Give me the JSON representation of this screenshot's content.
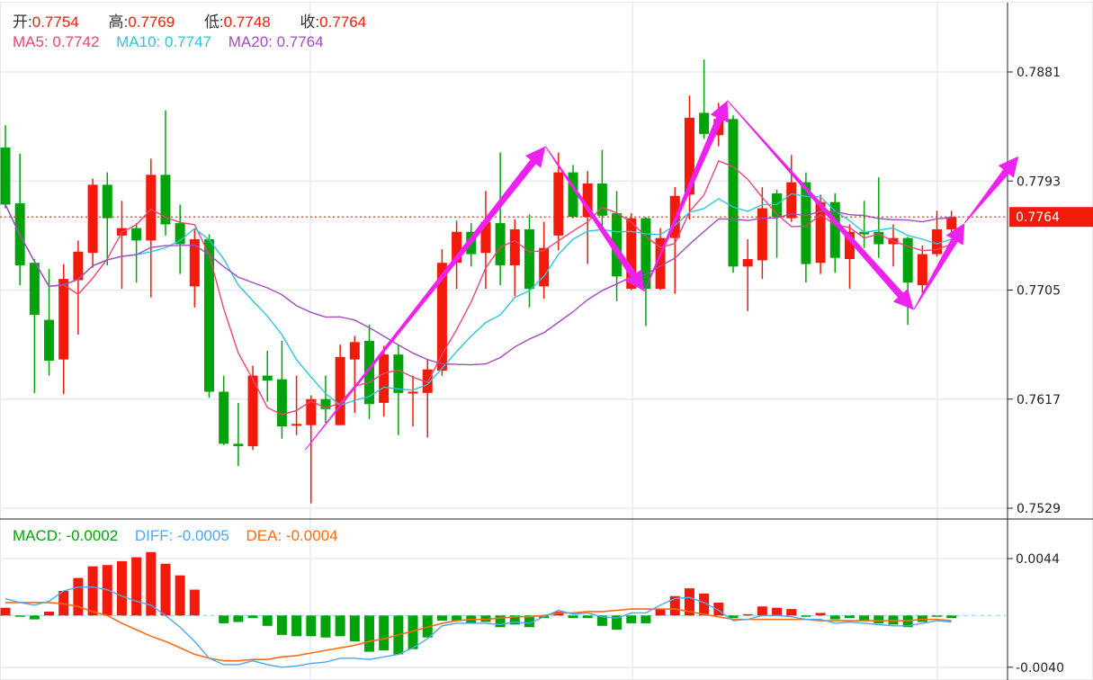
{
  "ohlc_legend": {
    "open_label": "开:",
    "open": "0.7754",
    "high_label": "高:",
    "high": "0.7769",
    "low_label": "低:",
    "low": "0.7748",
    "close_label": "收:",
    "close": "0.7764"
  },
  "ma_legend": {
    "ma5": "MA5: 0.7742",
    "ma10": "MA10: 0.7747",
    "ma20": "MA20: 0.7764"
  },
  "macd_legend": {
    "macd": "MACD: -0.0002",
    "diff": "DIFF: -0.0005",
    "dea": "DEA: -0.0004"
  },
  "colors": {
    "up": "#f21a0a",
    "down": "#00a40a",
    "ma5": "#e8457a",
    "ma10": "#2cc5dc",
    "ma20": "#a24cc0",
    "diff": "#4ea7f0",
    "dea": "#ff6a10",
    "arrow": "#ee22ee",
    "grid": "#e3ebf2"
  },
  "chart_data": [
    {
      "type": "candlestick",
      "title": "",
      "y_ticks": [
        "0.7881",
        "0.7793",
        "0.7705",
        "0.7617",
        "0.7529"
      ],
      "ylim": [
        0.7529,
        0.7881
      ],
      "last_price": "0.7764",
      "grid": true,
      "moving_averages": [
        5,
        10,
        20
      ],
      "candles_ohlc": [
        [
          0.782,
          0.7838,
          0.7771,
          0.7774
        ],
        [
          0.7775,
          0.7815,
          0.7709,
          0.7725
        ],
        [
          0.7727,
          0.773,
          0.7622,
          0.7685
        ],
        [
          0.7681,
          0.7722,
          0.7636,
          0.7648
        ],
        [
          0.7649,
          0.7726,
          0.7621,
          0.7714
        ],
        [
          0.7713,
          0.7745,
          0.7669,
          0.7736
        ],
        [
          0.7735,
          0.7795,
          0.7723,
          0.779
        ],
        [
          0.779,
          0.78,
          0.7725,
          0.7763
        ],
        [
          0.7749,
          0.7777,
          0.7706,
          0.7755
        ],
        [
          0.7755,
          0.7759,
          0.7711,
          0.7745
        ],
        [
          0.7745,
          0.7811,
          0.7699,
          0.7798
        ],
        [
          0.7798,
          0.785,
          0.7749,
          0.7758
        ],
        [
          0.7759,
          0.7774,
          0.7718,
          0.7742
        ],
        [
          0.7708,
          0.7755,
          0.7691,
          0.7746
        ],
        [
          0.7746,
          0.775,
          0.7618,
          0.7623
        ],
        [
          0.7623,
          0.7636,
          0.758,
          0.7581
        ],
        [
          0.7581,
          0.7614,
          0.7563,
          0.7579
        ],
        [
          0.7579,
          0.7644,
          0.7576,
          0.7636
        ],
        [
          0.7636,
          0.7656,
          0.7615,
          0.7632
        ],
        [
          0.7633,
          0.7664,
          0.7585,
          0.7595
        ],
        [
          0.7596,
          0.7636,
          0.7588,
          0.7597
        ],
        [
          0.7596,
          0.762,
          0.7533,
          0.7617
        ],
        [
          0.7617,
          0.7636,
          0.7598,
          0.7609
        ],
        [
          0.7596,
          0.7661,
          0.7596,
          0.7651
        ],
        [
          0.7649,
          0.7668,
          0.7606,
          0.7663
        ],
        [
          0.7664,
          0.7677,
          0.7601,
          0.7613
        ],
        [
          0.7614,
          0.766,
          0.7603,
          0.7653
        ],
        [
          0.7653,
          0.7661,
          0.7588,
          0.7622
        ],
        [
          0.7622,
          0.7636,
          0.7595,
          0.7623
        ],
        [
          0.7622,
          0.7649,
          0.7586,
          0.7641
        ],
        [
          0.764,
          0.7738,
          0.7636,
          0.7727
        ],
        [
          0.7727,
          0.7761,
          0.7706,
          0.7752
        ],
        [
          0.7752,
          0.7759,
          0.7724,
          0.7734
        ],
        [
          0.7735,
          0.7785,
          0.7706,
          0.776
        ],
        [
          0.7759,
          0.7816,
          0.7709,
          0.7725
        ],
        [
          0.7725,
          0.7762,
          0.77,
          0.7754
        ],
        [
          0.7754,
          0.7766,
          0.7691,
          0.7706
        ],
        [
          0.7708,
          0.776,
          0.7698,
          0.7739
        ],
        [
          0.7749,
          0.7816,
          0.7737,
          0.78
        ],
        [
          0.78,
          0.7806,
          0.7763,
          0.7764
        ],
        [
          0.7764,
          0.7801,
          0.7726,
          0.7791
        ],
        [
          0.7791,
          0.7818,
          0.7756,
          0.7765
        ],
        [
          0.7767,
          0.7785,
          0.7696,
          0.7716
        ],
        [
          0.7706,
          0.7767,
          0.7705,
          0.7763
        ],
        [
          0.7763,
          0.7764,
          0.7676,
          0.7706
        ],
        [
          0.7706,
          0.7755,
          0.7705,
          0.7747
        ],
        [
          0.7747,
          0.7788,
          0.7702,
          0.7781
        ],
        [
          0.7782,
          0.7862,
          0.7762,
          0.7844
        ],
        [
          0.7848,
          0.7891,
          0.7827,
          0.7831
        ],
        [
          0.783,
          0.7856,
          0.7821,
          0.7843
        ],
        [
          0.7843,
          0.7846,
          0.7719,
          0.7724
        ],
        [
          0.7724,
          0.7746,
          0.7688,
          0.773
        ],
        [
          0.7729,
          0.7788,
          0.7714,
          0.7771
        ],
        [
          0.7783,
          0.7786,
          0.7731,
          0.7764
        ],
        [
          0.7763,
          0.7814,
          0.776,
          0.7792
        ],
        [
          0.7792,
          0.78,
          0.7711,
          0.7726
        ],
        [
          0.7727,
          0.7782,
          0.7718,
          0.7776
        ],
        [
          0.7776,
          0.7783,
          0.7719,
          0.7731
        ],
        [
          0.773,
          0.7758,
          0.7706,
          0.7752
        ],
        [
          0.7752,
          0.7777,
          0.7739,
          0.775
        ],
        [
          0.7752,
          0.7796,
          0.7731,
          0.7742
        ],
        [
          0.7742,
          0.7758,
          0.7724,
          0.7747
        ],
        [
          0.7747,
          0.7748,
          0.7677,
          0.7711
        ],
        [
          0.7709,
          0.7741,
          0.7702,
          0.7734
        ],
        [
          0.7734,
          0.7769,
          0.7732,
          0.7754
        ],
        [
          0.7754,
          0.7769,
          0.7748,
          0.7764
        ]
      ],
      "annotation_arrows_index_price": [
        [
          [
            20.6,
            0.7576
          ],
          [
            37.1,
            0.7821
          ]
        ],
        [
          [
            37.1,
            0.7821
          ],
          [
            43.9,
            0.7704
          ]
        ],
        [
          [
            43.9,
            0.7704
          ],
          [
            49.6,
            0.7858
          ]
        ],
        [
          [
            49.6,
            0.7858
          ],
          [
            62.4,
            0.7689
          ]
        ],
        [
          [
            62.4,
            0.7689
          ],
          [
            65.9,
            0.7759
          ]
        ],
        [
          [
            65.9,
            0.7759
          ],
          [
            69.6,
            0.7813
          ]
        ]
      ]
    },
    {
      "type": "bar+line",
      "title": "",
      "y_ticks": [
        "0.0044",
        "-0.0040"
      ],
      "ylim": [
        -0.004,
        0.0044
      ],
      "macd_hist": [
        0.0006,
        -0.0001,
        -0.0003,
        0.0003,
        0.0019,
        0.0029,
        0.0038,
        0.0039,
        0.0042,
        0.0045,
        0.0049,
        0.004,
        0.0031,
        0.002,
        0,
        -0.0006,
        -0.0005,
        -0.0002,
        -0.0008,
        -0.0015,
        -0.0016,
        -0.0016,
        -0.0017,
        -0.0016,
        -0.002,
        -0.0028,
        -0.0027,
        -0.003,
        -0.0026,
        -0.0017,
        -0.0004,
        -0.0004,
        -0.0006,
        -0.0005,
        -0.0009,
        -0.0007,
        -0.0009,
        -0.0002,
        0.0003,
        -0.0002,
        -0.0002,
        -0.0008,
        -0.0011,
        -0.0006,
        -0.0006,
        0.0005,
        0.0015,
        0.0021,
        0.0017,
        0.001,
        -0.0002,
        0.0001,
        0.0007,
        0.0006,
        0.0005,
        -0.0001,
        0.0002,
        -0.0003,
        -0.0002,
        -0.0004,
        -0.0006,
        -0.0007,
        -0.0009,
        -0.0005,
        -0.0001,
        -0.0002
      ],
      "diff": [
        0.0013,
        0.001,
        0.0008,
        0.0011,
        0.0019,
        0.0022,
        0.0022,
        0.002,
        0.0015,
        0.0011,
        0.0008,
        0.0,
        -0.0009,
        -0.002,
        -0.0033,
        -0.0038,
        -0.0038,
        -0.0035,
        -0.0038,
        -0.004,
        -0.0039,
        -0.0037,
        -0.0036,
        -0.0033,
        -0.0033,
        -0.0034,
        -0.0032,
        -0.003,
        -0.0025,
        -0.0018,
        -0.0008,
        -0.0006,
        -0.0006,
        -0.0006,
        -0.0007,
        -0.0005,
        -0.0006,
        -0.0001,
        0.0004,
        0.0001,
        0.0002,
        -0.0001,
        -0.0002,
        0.0002,
        0.0002,
        0.0008,
        0.0013,
        0.0014,
        0.001,
        0.0004,
        -0.0004,
        -0.0003,
        0.0,
        0.0,
        -0.0001,
        -0.0003,
        -0.0003,
        -0.0006,
        -0.0005,
        -0.0006,
        -0.0007,
        -0.0008,
        -0.0008,
        -0.0006,
        -0.0004,
        -0.0005
      ],
      "dea": [
        0.001,
        0.001,
        0.001,
        0.001,
        0.0009,
        0.0007,
        0.0003,
        0.0,
        -0.0006,
        -0.0011,
        -0.0016,
        -0.002,
        -0.0025,
        -0.003,
        -0.0033,
        -0.0035,
        -0.0035,
        -0.0034,
        -0.0034,
        -0.0032,
        -0.0031,
        -0.0029,
        -0.0027,
        -0.0025,
        -0.0023,
        -0.002,
        -0.0018,
        -0.0015,
        -0.0012,
        -0.0009,
        -0.0006,
        -0.0004,
        -0.0003,
        -0.0003,
        -0.0002,
        -0.0001,
        -0.0001,
        0.0,
        0.0002,
        0.0002,
        0.0003,
        0.0003,
        0.0004,
        0.0005,
        0.0005,
        0.0005,
        0.0005,
        0.0003,
        0.0001,
        -0.0001,
        -0.0003,
        -0.0003,
        -0.0003,
        -0.0003,
        -0.0003,
        -0.0003,
        -0.0004,
        -0.0004,
        -0.0004,
        -0.0004,
        -0.0004,
        -0.0004,
        -0.0004,
        -0.0003,
        -0.0003,
        -0.0004
      ]
    }
  ]
}
